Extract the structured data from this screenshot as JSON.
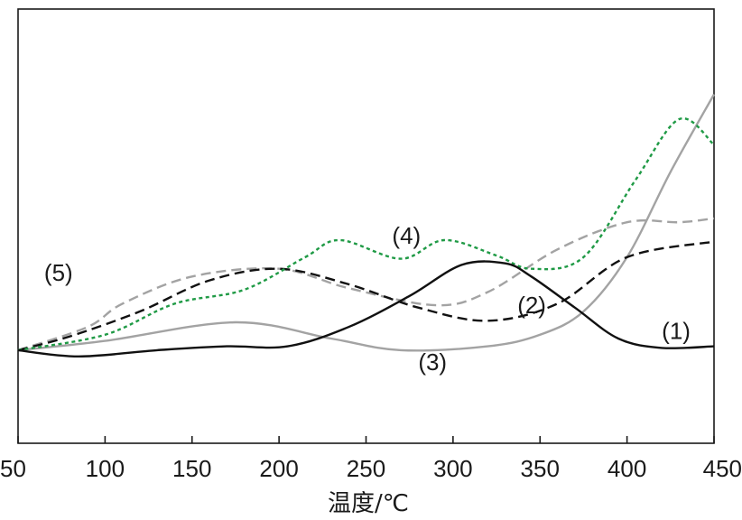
{
  "chart_data": {
    "type": "line",
    "title": "",
    "xlabel": "温度/℃",
    "ylabel": "",
    "xlim": [
      50,
      450
    ],
    "ylim": [
      -1.2,
      4.4
    ],
    "x_ticks": [
      "50",
      "100",
      "150",
      "200",
      "250",
      "300",
      "350",
      "400",
      "450"
    ],
    "grid": false,
    "legend": "none",
    "series": [
      {
        "name": "(1)",
        "label_at": [
          420,
          0.25
        ],
        "color": "#111111",
        "style": "solid",
        "x": [
          50,
          85,
          130,
          170,
          205,
          240,
          275,
          305,
          330,
          345,
          370,
          395,
          420,
          450
        ],
        "y": [
          0,
          -0.08,
          0,
          0.05,
          0.05,
          0.3,
          0.7,
          1.1,
          1.12,
          0.95,
          0.55,
          0.15,
          0.03,
          0.05
        ]
      },
      {
        "name": "(2)",
        "label_at": [
          337,
          0.58
        ],
        "color": "#111111",
        "style": "dashed",
        "x": [
          50,
          80,
          120,
          160,
          200,
          240,
          280,
          320,
          360,
          400,
          450
        ],
        "y": [
          0,
          0.18,
          0.5,
          0.9,
          1.05,
          0.85,
          0.55,
          0.38,
          0.6,
          1.2,
          1.4
        ]
      },
      {
        "name": "(3)",
        "label_at": [
          280,
          -0.15
        ],
        "color": "#a3a3a3",
        "style": "solid",
        "x": [
          50,
          100,
          175,
          230,
          270,
          320,
          350,
          375,
          400,
          425,
          450
        ],
        "y": [
          0,
          0.12,
          0.36,
          0.15,
          0,
          0.05,
          0.2,
          0.5,
          1.2,
          2.3,
          3.3
        ]
      },
      {
        "name": "(4)",
        "label_at": [
          265,
          1.48
        ],
        "color": "#1f9a45",
        "style": "dotted",
        "x": [
          50,
          100,
          140,
          180,
          215,
          235,
          270,
          295,
          325,
          345,
          375,
          405,
          430,
          450
        ],
        "y": [
          0,
          0.2,
          0.6,
          0.78,
          1.2,
          1.42,
          1.18,
          1.42,
          1.22,
          1.05,
          1.2,
          2.2,
          2.98,
          2.65
        ]
      },
      {
        "name": "(5)",
        "label_at": [
          65,
          1.0
        ],
        "color": "#a3a3a3",
        "style": "dashed",
        "x": [
          50,
          90,
          110,
          150,
          200,
          240,
          290,
          320,
          360,
          400,
          430,
          450
        ],
        "y": [
          0,
          0.3,
          0.6,
          0.95,
          1.05,
          0.8,
          0.58,
          0.75,
          1.3,
          1.65,
          1.65,
          1.7
        ]
      }
    ]
  }
}
